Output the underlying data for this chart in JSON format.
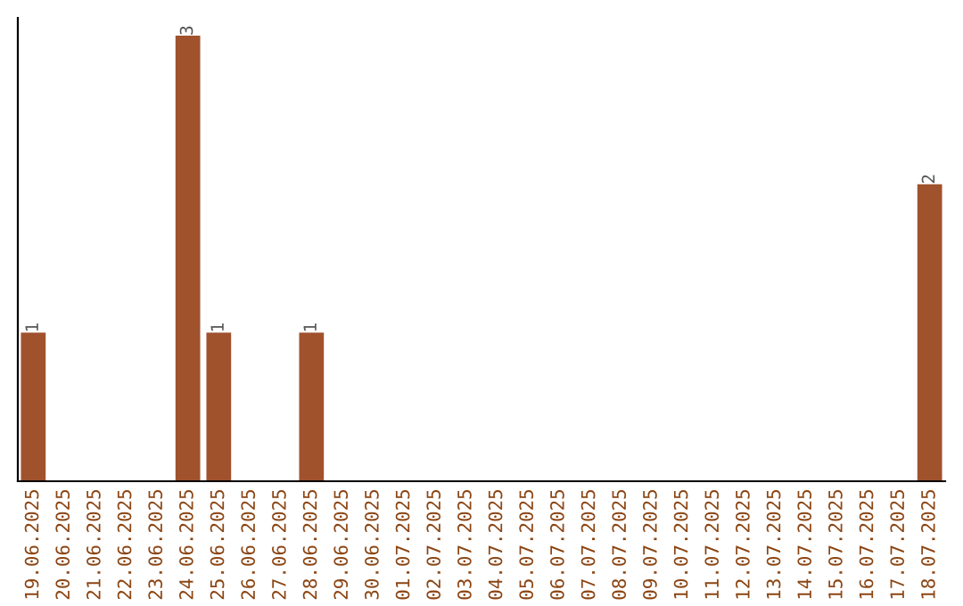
{
  "chart_data": {
    "type": "bar",
    "categories": [
      "19.06.2025",
      "20.06.2025",
      "21.06.2025",
      "22.06.2025",
      "23.06.2025",
      "24.06.2025",
      "25.06.2025",
      "26.06.2025",
      "27.06.2025",
      "28.06.2025",
      "29.06.2025",
      "30.06.2025",
      "01.07.2025",
      "02.07.2025",
      "03.07.2025",
      "04.07.2025",
      "05.07.2025",
      "06.07.2025",
      "07.07.2025",
      "08.07.2025",
      "09.07.2025",
      "10.07.2025",
      "11.07.2025",
      "12.07.2025",
      "13.07.2025",
      "14.07.2025",
      "15.07.2025",
      "16.07.2025",
      "17.07.2025",
      "18.07.2025"
    ],
    "values": [
      1,
      0,
      0,
      0,
      0,
      3,
      1,
      0,
      0,
      1,
      0,
      0,
      0,
      0,
      0,
      0,
      0,
      0,
      0,
      0,
      0,
      0,
      0,
      0,
      0,
      0,
      0,
      0,
      0,
      2
    ],
    "color": "#a0522d",
    "value_labels": [
      "1",
      null,
      null,
      null,
      null,
      "3",
      "1",
      null,
      null,
      "1",
      null,
      null,
      null,
      null,
      null,
      null,
      null,
      null,
      null,
      null,
      null,
      null,
      null,
      null,
      null,
      null,
      null,
      null,
      null,
      "2"
    ],
    "tick_labels": "x",
    "grid": false,
    "legend": false
  }
}
